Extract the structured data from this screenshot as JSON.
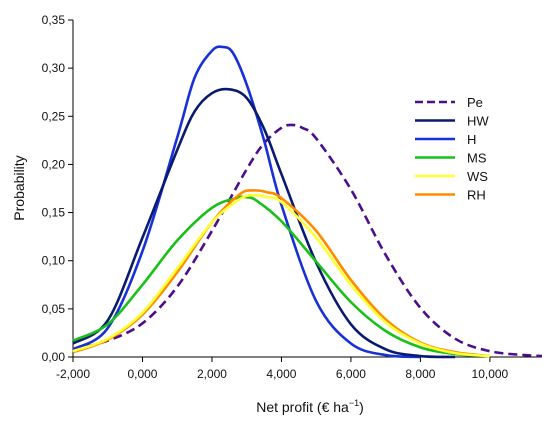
{
  "chart_data": {
    "type": "line",
    "xlabel": "Net profit (€ ha",
    "xlabel_sup": "−1",
    "xlabel_close": ")",
    "ylabel": "Probability",
    "xlim": [
      -2000,
      11500
    ],
    "ylim": [
      0,
      0.35
    ],
    "x_ticks": [
      -2000,
      0,
      2000,
      4000,
      6000,
      8000,
      10000
    ],
    "x_tick_labels": [
      "-2,000",
      "0,000",
      "2,000",
      "4,000",
      "6,000",
      "8,000",
      "10,000"
    ],
    "y_ticks": [
      0,
      0.05,
      0.1,
      0.15,
      0.2,
      0.25,
      0.3,
      0.35
    ],
    "y_tick_labels": [
      "0,00",
      "0,05",
      "0,10",
      "0,15",
      "0,20",
      "0,25",
      "0,30",
      "0,35"
    ],
    "legend_position": "top-right",
    "grid": false,
    "series": [
      {
        "name": "Pe",
        "color": "#4b0f8c",
        "dash": true,
        "x": [
          -2000,
          -1000,
          0,
          1000,
          2000,
          3000,
          3500,
          4000,
          4300,
          4600,
          5000,
          6000,
          7000,
          8000,
          9000,
          10000,
          11000,
          11500
        ],
        "y": [
          0.008,
          0.017,
          0.035,
          0.073,
          0.131,
          0.195,
          0.222,
          0.238,
          0.241,
          0.238,
          0.227,
          0.174,
          0.106,
          0.051,
          0.019,
          0.006,
          0.002,
          0.001
        ]
      },
      {
        "name": "HW",
        "color": "#0a1a6e",
        "dash": false,
        "x": [
          -2000,
          -1000,
          0,
          1000,
          1500,
          2000,
          2500,
          3000,
          3500,
          4000,
          5000,
          6000,
          7000,
          8000,
          9000
        ],
        "y": [
          0.014,
          0.038,
          0.124,
          0.215,
          0.255,
          0.274,
          0.278,
          0.269,
          0.237,
          0.19,
          0.098,
          0.034,
          0.008,
          0.001,
          0.0
        ]
      },
      {
        "name": "H",
        "color": "#1830d8",
        "dash": false,
        "x": [
          -2000,
          -1000,
          0,
          1000,
          1500,
          2000,
          2300,
          2600,
          3000,
          3500,
          4000,
          5000,
          6000,
          7000,
          8000
        ],
        "y": [
          0.008,
          0.03,
          0.11,
          0.228,
          0.29,
          0.318,
          0.322,
          0.316,
          0.283,
          0.225,
          0.158,
          0.058,
          0.014,
          0.002,
          0.0
        ]
      },
      {
        "name": "MS",
        "color": "#18c018",
        "dash": false,
        "x": [
          -2000,
          -1000,
          0,
          1000,
          2000,
          2700,
          3000,
          3300,
          4000,
          5000,
          6000,
          7000,
          8000,
          9000,
          10000
        ],
        "y": [
          0.017,
          0.034,
          0.075,
          0.121,
          0.155,
          0.165,
          0.166,
          0.162,
          0.141,
          0.099,
          0.057,
          0.027,
          0.01,
          0.003,
          0.001
        ]
      },
      {
        "name": "WS",
        "color": "#ffff33",
        "dash": false,
        "x": [
          -2000,
          -1000,
          0,
          1000,
          2000,
          2800,
          3200,
          3600,
          4000,
          5000,
          6000,
          7000,
          8000,
          9000,
          10000
        ],
        "y": [
          0.006,
          0.019,
          0.046,
          0.092,
          0.14,
          0.164,
          0.168,
          0.166,
          0.161,
          0.124,
          0.075,
          0.036,
          0.014,
          0.004,
          0.001
        ]
      },
      {
        "name": "RH",
        "color": "#ff8c00",
        "dash": false,
        "x": [
          -2000,
          -1000,
          0,
          1000,
          2000,
          2800,
          3200,
          3600,
          4000,
          5000,
          6000,
          7000,
          8000,
          9000,
          10000
        ],
        "y": [
          0.005,
          0.018,
          0.044,
          0.088,
          0.14,
          0.169,
          0.173,
          0.171,
          0.165,
          0.131,
          0.08,
          0.039,
          0.015,
          0.005,
          0.001
        ]
      }
    ]
  }
}
